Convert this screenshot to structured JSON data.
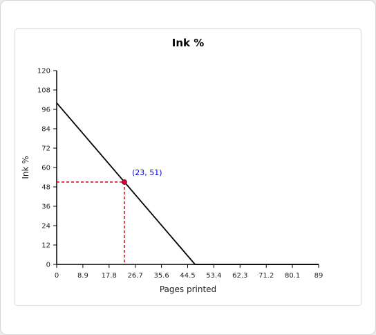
{
  "chart_data": {
    "type": "line",
    "title": "Ink %",
    "xlabel": "Pages printed",
    "ylabel": "Ink %",
    "xlim": [
      0,
      89
    ],
    "ylim": [
      0,
      120
    ],
    "x_ticks": [
      "0",
      "8.9",
      "17.8",
      "26.7",
      "35.6",
      "44.5",
      "53.4",
      "62.3",
      "71.2",
      "80.1",
      "89"
    ],
    "y_ticks": [
      "0",
      "12",
      "24",
      "36",
      "48",
      "60",
      "72",
      "84",
      "96",
      "108",
      "120"
    ],
    "series": [
      {
        "x": [
          0,
          47,
          89
        ],
        "y": [
          100,
          0,
          0
        ],
        "color": "#000000"
      }
    ],
    "highlight_point": {
      "x": 23,
      "y": 51,
      "label": "(23, 51)",
      "point_color": "#cc0033",
      "label_color": "#0000cc",
      "guide_color": "#dd0000"
    },
    "grid": false,
    "legend": "none"
  }
}
